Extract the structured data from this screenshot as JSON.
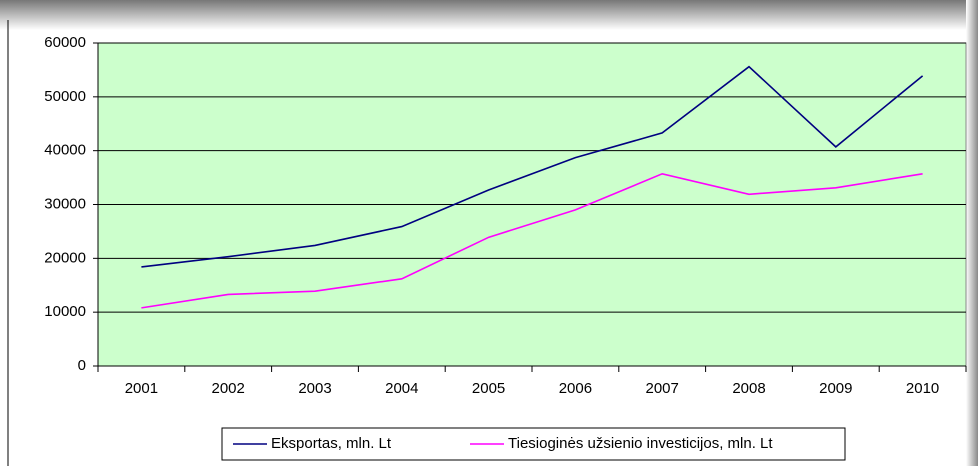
{
  "chart_data": {
    "type": "line",
    "categories": [
      "2001",
      "2002",
      "2003",
      "2004",
      "2005",
      "2006",
      "2007",
      "2008",
      "2009",
      "2010"
    ],
    "series": [
      {
        "name": "Eksportas, mln. Lt",
        "color": "#000080",
        "values": [
          18400,
          20300,
          22400,
          25900,
          32700,
          38700,
          43300,
          55600,
          40700,
          53900
        ]
      },
      {
        "name": "Tiesioginės užsienio investicijos, mln. Lt",
        "color": "#ff00ff",
        "values": [
          10800,
          13300,
          13900,
          16200,
          23900,
          29000,
          35700,
          31900,
          33100,
          35700
        ]
      }
    ],
    "ylim": [
      0,
      60000
    ],
    "yticks": [
      0,
      10000,
      20000,
      30000,
      40000,
      50000,
      60000
    ],
    "grid": true,
    "plot_background": "#ccffcc",
    "legend": "bottom"
  }
}
